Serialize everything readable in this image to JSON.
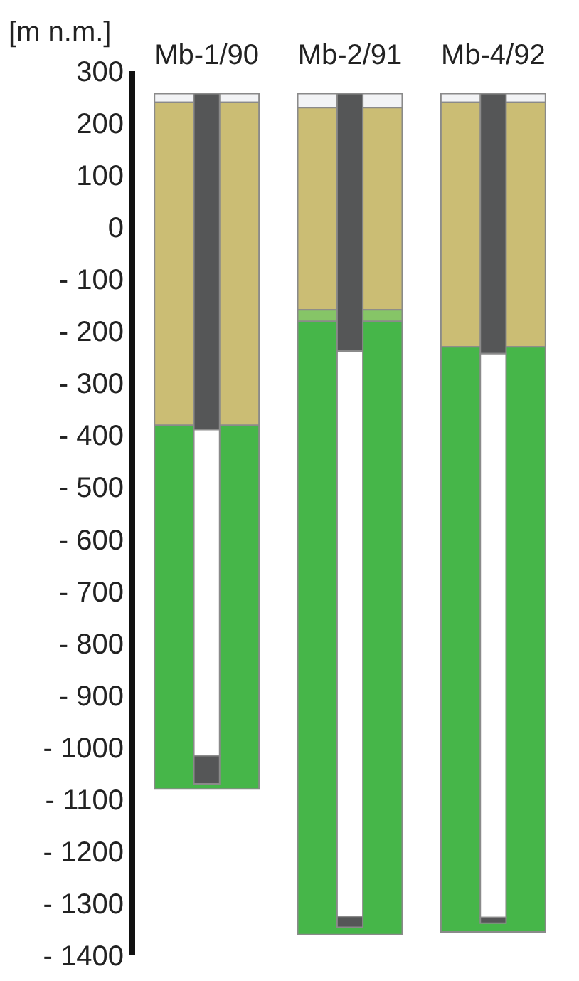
{
  "chart_data": {
    "type": "bar",
    "ylabel": "[m n.m.]",
    "categories": [
      "Mb-1/90",
      "Mb-2/91",
      "Mb-4/92"
    ],
    "series": [
      {
        "color": "#f2f3f5",
        "base": [
          257,
          257,
          257
        ],
        "values": [
          -17,
          -27,
          -17
        ]
      },
      {
        "color": "#cbbd74",
        "base": [
          240,
          230,
          240
        ],
        "values": [
          -621,
          -389,
          -470
        ]
      },
      {
        "color": "#86c567",
        "base": [
          null,
          -159,
          null
        ],
        "values": [
          null,
          -22,
          null
        ]
      },
      {
        "color": "#46b649",
        "base": [
          -381,
          -181,
          -230
        ],
        "values": [
          -699,
          -1179,
          -1125
        ]
      },
      {
        "color": "#555657",
        "base": [
          257,
          257,
          257
        ],
        "values": [
          -646,
          -495,
          -500
        ]
      },
      {
        "color": "#ffffff",
        "base": [
          -389,
          -238,
          -243
        ],
        "values": [
          -627,
          -1087,
          -1084
        ]
      },
      {
        "color": "#555657",
        "base": [
          -1016,
          -1325,
          -1327
        ],
        "values": [
          -54,
          -21,
          -11
        ]
      }
    ],
    "ylim": [
      -1400,
      300
    ],
    "yticks": [
      300,
      200,
      100,
      0,
      {
        "value": -100,
        "label": "- 100"
      },
      {
        "value": -200,
        "label": "- 200"
      },
      {
        "value": -300,
        "label": "- 300"
      },
      {
        "value": -400,
        "label": "- 400"
      },
      {
        "value": -500,
        "label": "- 500"
      },
      {
        "value": -600,
        "label": "- 600"
      },
      {
        "value": -700,
        "label": "- 700"
      },
      {
        "value": -800,
        "label": "- 800"
      },
      {
        "value": -900,
        "label": "- 900"
      },
      {
        "value": -1000,
        "label": "- 1000"
      },
      {
        "value": -1100,
        "label": "- 1100"
      },
      {
        "value": -1200,
        "label": "- 1200"
      },
      {
        "value": -1300,
        "label": "- 1300"
      },
      {
        "value": -1400,
        "label": "- 1400"
      }
    ],
    "grid": false
  }
}
